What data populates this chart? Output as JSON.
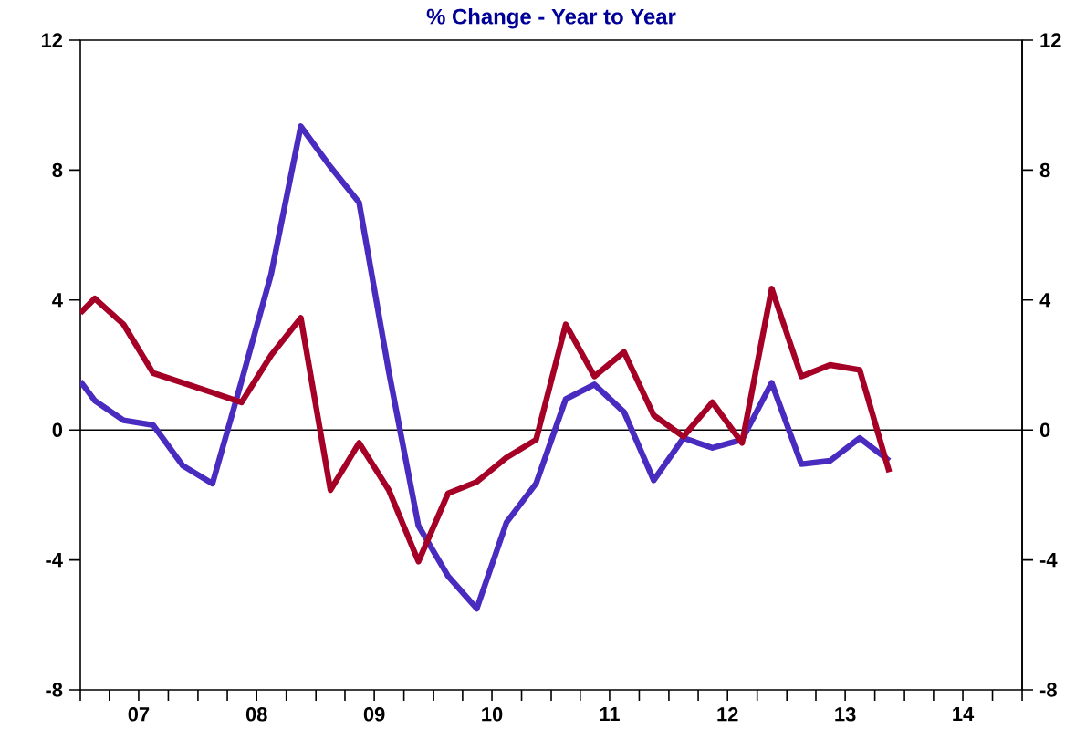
{
  "chart_data": {
    "type": "line",
    "title": "% Change - Year to Year",
    "x": [
      "2007-01-01",
      "2007-02-15",
      "2007-05-15",
      "2007-08-15",
      "2007-11-15",
      "2008-02-15",
      "2008-05-15",
      "2008-08-15",
      "2008-11-15",
      "2009-02-15",
      "2009-05-15",
      "2009-08-15",
      "2009-11-15",
      "2010-02-15",
      "2010-05-15",
      "2010-08-15",
      "2010-11-15",
      "2011-02-15",
      "2011-05-15",
      "2011-08-15",
      "2011-11-15",
      "2012-02-15",
      "2012-05-15",
      "2012-08-15",
      "2012-11-15",
      "2013-02-15",
      "2013-05-15",
      "2013-08-15",
      "2013-11-15"
    ],
    "series": [
      {
        "color": "#4a2bbf",
        "values": [
          1.5,
          0.9,
          0.3,
          0.15,
          -1.1,
          -1.65,
          1.5,
          4.8,
          9.35,
          8.1,
          7.0,
          1.8,
          -2.95,
          -4.5,
          -5.5,
          -2.85,
          -1.65,
          0.95,
          1.4,
          0.55,
          -1.55,
          -0.25,
          -0.55,
          -0.3,
          1.45,
          -1.05,
          -0.95,
          -0.25,
          -0.95
        ]
      },
      {
        "color": "#a50026",
        "values": [
          3.6,
          4.05,
          3.25,
          1.75,
          1.45,
          1.15,
          0.85,
          2.3,
          3.45,
          -1.85,
          -0.4,
          -1.85,
          -4.05,
          -1.95,
          -1.6,
          -0.85,
          -0.3,
          3.25,
          1.65,
          2.4,
          0.45,
          -0.2,
          0.85,
          -0.4,
          4.35,
          1.65,
          2.0,
          1.85,
          -1.3
        ]
      }
    ],
    "xlim": [
      "2007-01-01",
      "2015-01-01"
    ],
    "xticks": [
      {
        "value": "2007-01-01",
        "label": null
      },
      {
        "value": "2007-04-01",
        "label": null
      },
      {
        "value": "2007-07-01",
        "label": "07"
      },
      {
        "value": "2007-10-01",
        "label": null
      },
      {
        "value": "2008-01-01",
        "label": null
      },
      {
        "value": "2008-04-01",
        "label": null
      },
      {
        "value": "2008-07-01",
        "label": "08"
      },
      {
        "value": "2008-10-01",
        "label": null
      },
      {
        "value": "2009-01-01",
        "label": null
      },
      {
        "value": "2009-04-01",
        "label": null
      },
      {
        "value": "2009-07-01",
        "label": "09"
      },
      {
        "value": "2009-10-01",
        "label": null
      },
      {
        "value": "2010-01-01",
        "label": null
      },
      {
        "value": "2010-04-01",
        "label": null
      },
      {
        "value": "2010-07-01",
        "label": "10"
      },
      {
        "value": "2010-10-01",
        "label": null
      },
      {
        "value": "2011-01-01",
        "label": null
      },
      {
        "value": "2011-04-01",
        "label": null
      },
      {
        "value": "2011-07-01",
        "label": "11"
      },
      {
        "value": "2011-10-01",
        "label": null
      },
      {
        "value": "2012-01-01",
        "label": null
      },
      {
        "value": "2012-04-01",
        "label": null
      },
      {
        "value": "2012-07-01",
        "label": "12"
      },
      {
        "value": "2012-10-01",
        "label": null
      },
      {
        "value": "2013-01-01",
        "label": null
      },
      {
        "value": "2013-04-01",
        "label": null
      },
      {
        "value": "2013-07-01",
        "label": "13"
      },
      {
        "value": "2013-10-01",
        "label": null
      },
      {
        "value": "2014-01-01",
        "label": null
      },
      {
        "value": "2014-04-01",
        "label": null
      },
      {
        "value": "2014-07-01",
        "label": "14"
      },
      {
        "value": "2014-10-01",
        "label": null
      },
      {
        "value": "2015-01-01",
        "label": null
      }
    ],
    "ylim": [
      -8,
      12
    ],
    "yticks": [
      -8,
      -4,
      0,
      4,
      8,
      12
    ],
    "y2lim": [
      -8,
      12
    ],
    "y2ticks": [
      -8,
      -4,
      0,
      4,
      8,
      12
    ],
    "ref_lines": [
      {
        "axis": "y",
        "value": 0,
        "color": "#000000"
      }
    ],
    "grid": false,
    "marker": "none",
    "line_style": "solid"
  }
}
